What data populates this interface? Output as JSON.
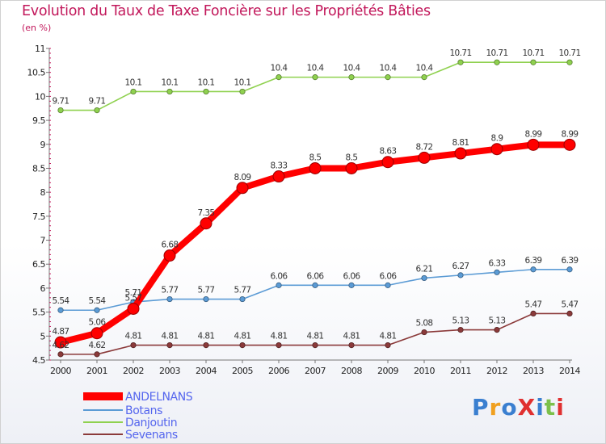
{
  "title": "Evolution du Taux de Taxe Foncière sur les Propriétés Bâties",
  "subtitle": "(en %)",
  "logo_text": "ProXiti",
  "chart_data": {
    "type": "line",
    "title": "Evolution du Taux de Taxe Foncière sur les Propriétés Bâties",
    "ylabel": "(en %)",
    "xlabel": "",
    "x": [
      2000,
      2001,
      2002,
      2003,
      2004,
      2005,
      2006,
      2007,
      2008,
      2009,
      2010,
      2011,
      2012,
      2013,
      2014
    ],
    "ylim": [
      4.5,
      11
    ],
    "yticks": [
      "4.5",
      "5",
      "5.5",
      "6",
      "6.5",
      "7",
      "7.5",
      "8",
      "8.5",
      "9",
      "9.5",
      "10",
      "10.5",
      "11"
    ],
    "grid": false,
    "legend_position": "bottom-left",
    "series": [
      {
        "name": "ANDELNANS",
        "color": "#ff0000",
        "emphasis": true,
        "values": [
          4.87,
          5.06,
          5.57,
          6.68,
          7.35,
          8.09,
          8.33,
          8.5,
          8.5,
          8.63,
          8.72,
          8.81,
          8.9,
          8.99,
          8.99
        ],
        "labels": [
          "4.87",
          "5.06",
          "5.57",
          "6.68",
          "7.35",
          "8.09",
          "8.33",
          "8.5",
          "8.5",
          "8.63",
          "8.72",
          "8.81",
          "8.9",
          "8.99",
          "8.99"
        ]
      },
      {
        "name": "Botans",
        "color": "#5b9bd5",
        "values": [
          5.54,
          5.54,
          5.71,
          5.77,
          5.77,
          5.77,
          6.06,
          6.06,
          6.06,
          6.06,
          6.21,
          6.27,
          6.33,
          6.39,
          6.39
        ],
        "labels": [
          "5.54",
          "5.54",
          "5.71",
          "5.77",
          "5.77",
          "5.77",
          "6.06",
          "6.06",
          "6.06",
          "6.06",
          "6.21",
          "6.27",
          "6.33",
          "6.39",
          "6.39"
        ]
      },
      {
        "name": "Danjoutin",
        "color": "#8fd14f",
        "values": [
          9.71,
          9.71,
          10.1,
          10.1,
          10.1,
          10.1,
          10.4,
          10.4,
          10.4,
          10.4,
          10.4,
          10.71,
          10.71,
          10.71,
          10.71
        ],
        "labels": [
          "9.71",
          "9.71",
          "10.1",
          "10.1",
          "10.1",
          "10.1",
          "10.4",
          "10.4",
          "10.4",
          "10.4",
          "10.4",
          "10.71",
          "10.71",
          "10.71",
          "10.71"
        ]
      },
      {
        "name": "Sevenans",
        "color": "#8b3a3a",
        "values": [
          4.62,
          4.62,
          4.81,
          4.81,
          4.81,
          4.81,
          4.81,
          4.81,
          4.81,
          4.81,
          5.08,
          5.13,
          5.13,
          5.47,
          5.47
        ],
        "labels": [
          "4.62",
          "4.62",
          "4.81",
          "4.81",
          "4.81",
          "4.81",
          "4.81",
          "4.81",
          "4.81",
          "4.81",
          "5.08",
          "5.13",
          "5.13",
          "5.47",
          "5.47"
        ]
      }
    ]
  }
}
